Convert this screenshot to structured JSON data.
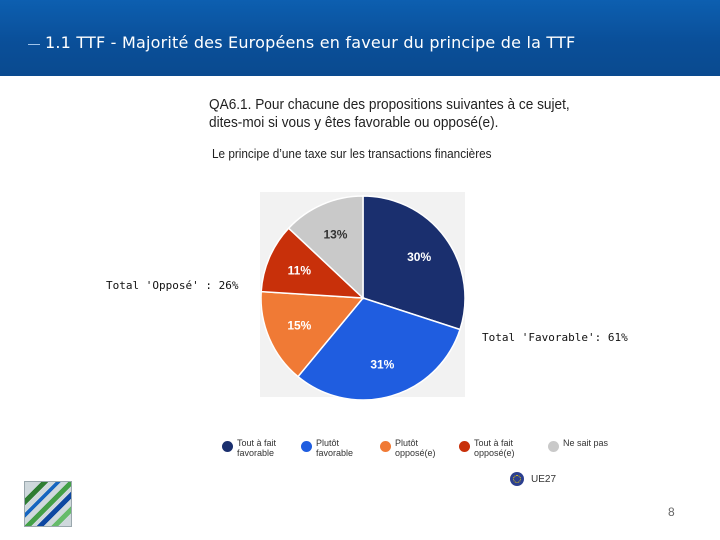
{
  "header": {
    "title": "1.1 TTF - Majorité des Européens en faveur du principe de la TTF"
  },
  "question": {
    "line1": "QA6.1. Pour chacune des propositions suivantes à ce sujet,",
    "line2": "dites-moi si vous y êtes favorable ou opposé(e).",
    "subtitle": "Le principe d’une taxe sur les transactions financières"
  },
  "annotations": {
    "oppose": "Total 'Opposé' : 26%",
    "favorable": "Total 'Favorable': 61%"
  },
  "chart_data": {
    "type": "pie",
    "title": "Le principe d’une taxe sur les transactions financières",
    "slices": [
      {
        "label": "Tout à fait favorable",
        "value": 30,
        "display": "30%",
        "color": "#1a2f6e"
      },
      {
        "label": "Plutôt favorable",
        "value": 31,
        "display": "31%",
        "color": "#1f5de0"
      },
      {
        "label": "Plutôt opposé(e)",
        "value": 15,
        "display": "15%",
        "color": "#f07a35"
      },
      {
        "label": "Tout à fait opposé(e)",
        "value": 11,
        "display": "11%",
        "color": "#c8300a"
      },
      {
        "label": "Ne sait pas",
        "value": 13,
        "display": "13%",
        "color": "#c9c9c9"
      }
    ],
    "legend_position": "bottom"
  },
  "legend": {
    "items": [
      {
        "label": "Tout à fait favorable",
        "color": "#1a2f6e"
      },
      {
        "label": "Plutôt favorable",
        "color": "#1f5de0"
      },
      {
        "label": "Plutôt opposé(e)",
        "color": "#f07a35"
      },
      {
        "label": "Tout à fait opposé(e)",
        "color": "#c8300a"
      },
      {
        "label": "Ne sait pas",
        "color": "#c9c9c9"
      }
    ]
  },
  "region": {
    "label": "UE27"
  },
  "page": {
    "number": "8"
  }
}
